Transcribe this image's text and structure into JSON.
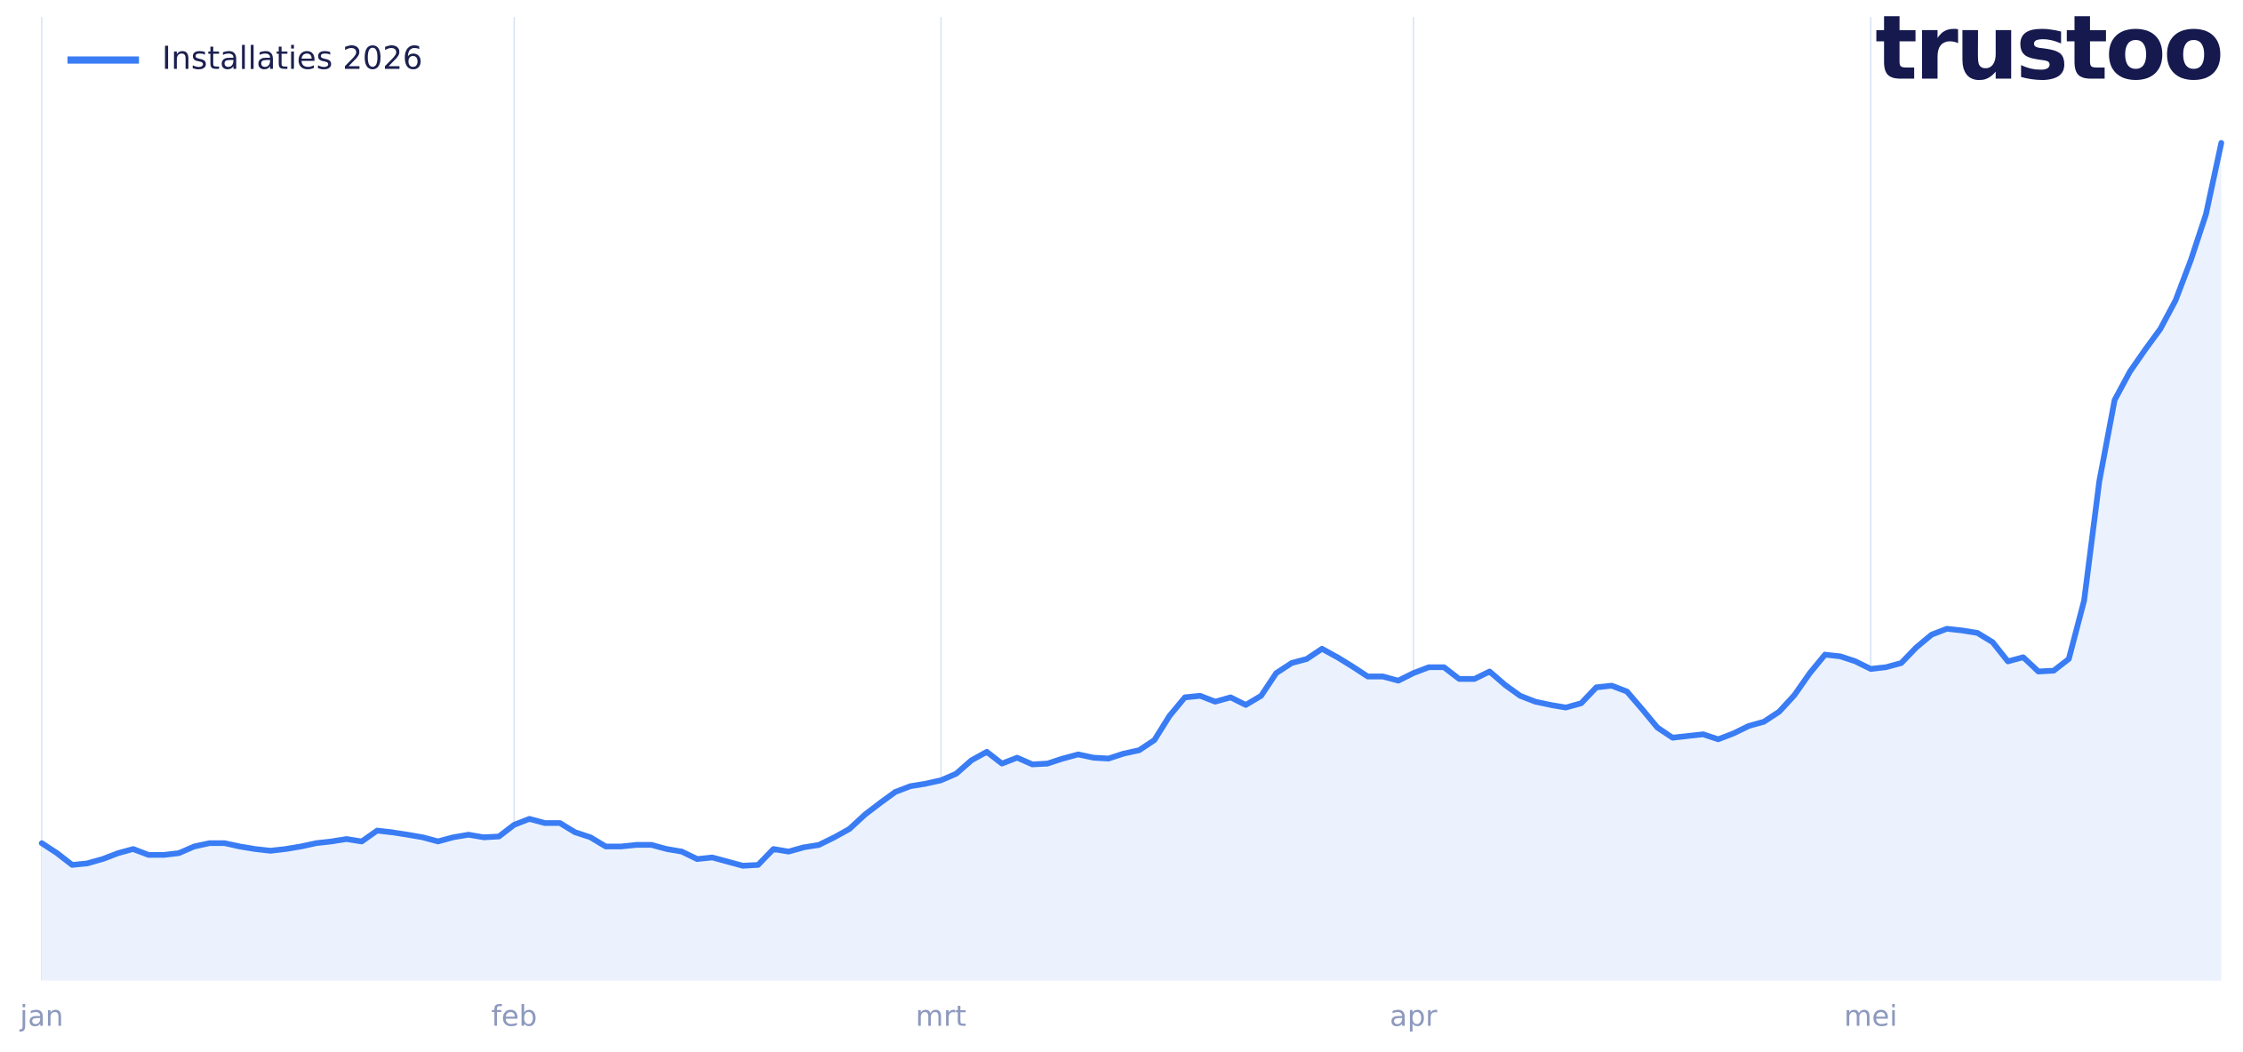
{
  "chart_data": {
    "type": "area",
    "logo": "trustoo",
    "legend": "top-left",
    "grid": true,
    "ylim": [
      0,
      100
    ],
    "categories": [
      "jan",
      null,
      null,
      null,
      null,
      null,
      null,
      null,
      null,
      null,
      null,
      null,
      null,
      null,
      null,
      null,
      null,
      null,
      null,
      null,
      null,
      null,
      null,
      null,
      null,
      null,
      null,
      null,
      null,
      null,
      null,
      "feb",
      null,
      null,
      null,
      null,
      null,
      null,
      null,
      null,
      null,
      null,
      null,
      null,
      null,
      null,
      null,
      null,
      null,
      null,
      null,
      null,
      null,
      null,
      null,
      null,
      null,
      null,
      null,
      "mrt",
      null,
      null,
      null,
      null,
      null,
      null,
      null,
      null,
      null,
      null,
      null,
      null,
      null,
      null,
      null,
      null,
      null,
      null,
      null,
      null,
      null,
      null,
      null,
      null,
      null,
      null,
      null,
      null,
      null,
      null,
      "apr",
      null,
      null,
      null,
      null,
      null,
      null,
      null,
      null,
      null,
      null,
      null,
      null,
      null,
      null,
      null,
      null,
      null,
      null,
      null,
      null,
      null,
      null,
      null,
      null,
      null,
      null,
      null,
      null,
      null,
      "mei",
      null,
      null,
      null,
      null,
      null,
      null,
      null,
      null,
      null,
      null,
      null,
      null,
      null,
      null,
      null,
      null,
      null,
      null,
      null,
      null,
      null,
      null,
      null
    ],
    "series": [
      {
        "name": "Installaties 2026",
        "color": "#3a7cf4",
        "fill": "#ebf2fd",
        "values": [
          16.4,
          15.2,
          13.8,
          14.0,
          14.5,
          15.2,
          15.7,
          15.0,
          15.0,
          15.2,
          16.0,
          16.4,
          16.4,
          16.0,
          15.7,
          15.5,
          15.7,
          16.0,
          16.4,
          16.6,
          16.9,
          16.6,
          17.9,
          17.7,
          17.4,
          17.1,
          16.6,
          17.1,
          17.4,
          17.1,
          17.2,
          18.6,
          19.3,
          18.8,
          18.8,
          17.7,
          17.1,
          16.0,
          16.0,
          16.2,
          16.2,
          15.7,
          15.4,
          14.5,
          14.7,
          14.2,
          13.7,
          13.8,
          15.7,
          15.4,
          15.9,
          16.2,
          17.1,
          18.1,
          19.8,
          21.2,
          22.5,
          23.2,
          23.5,
          23.9,
          24.7,
          26.3,
          27.3,
          25.9,
          26.6,
          25.8,
          25.9,
          26.5,
          27.0,
          26.6,
          26.5,
          27.1,
          27.5,
          28.7,
          31.6,
          33.8,
          34.0,
          33.3,
          33.8,
          32.9,
          34.0,
          36.7,
          37.9,
          38.4,
          39.6,
          38.6,
          37.5,
          36.3,
          36.3,
          35.8,
          36.7,
          37.4,
          37.4,
          36.0,
          36.0,
          36.9,
          35.3,
          34.0,
          33.3,
          32.9,
          32.6,
          33.1,
          35.0,
          35.2,
          34.5,
          32.4,
          30.2,
          29.0,
          29.2,
          29.4,
          28.8,
          29.5,
          30.4,
          30.9,
          32.1,
          34.1,
          36.7,
          38.9,
          38.7,
          38.1,
          37.2,
          37.4,
          37.9,
          39.8,
          41.3,
          42.0,
          41.8,
          41.5,
          40.4,
          38.1,
          38.6,
          36.9,
          37.0,
          38.4,
          45.4,
          59.6,
          69.3,
          72.7,
          75.3,
          77.8,
          81.2,
          86.0,
          91.5,
          100.0
        ]
      }
    ]
  }
}
